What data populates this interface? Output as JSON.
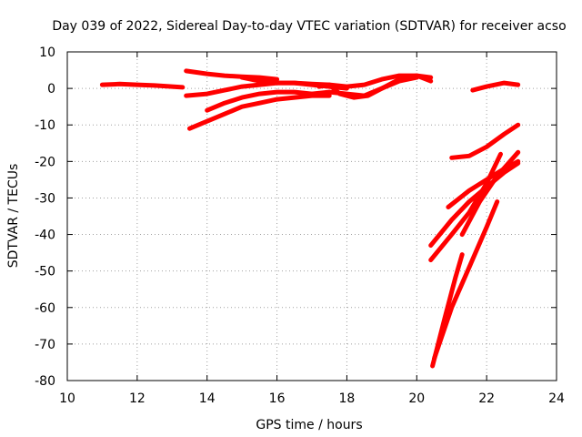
{
  "chart_data": {
    "type": "line",
    "title": "Day 039 of 2022, Sidereal Day-to-day VTEC variation (SDTVAR) for receiver acso",
    "xlabel": "GPS time / hours",
    "ylabel": "SDTVAR / TECUs",
    "xlim": [
      10,
      24
    ],
    "ylim": [
      -80,
      10
    ],
    "xticks": [
      10,
      12,
      14,
      16,
      18,
      20,
      22,
      24
    ],
    "yticks": [
      -80,
      -70,
      -60,
      -50,
      -40,
      -30,
      -20,
      -10,
      0,
      10
    ],
    "grid": true,
    "colors": {
      "series": "#ff0000"
    },
    "series": [
      {
        "x": [
          11.0,
          11.5,
          12.0,
          12.5,
          13.0,
          13.3
        ],
        "y": [
          1.0,
          1.2,
          1.0,
          0.8,
          0.5,
          0.3
        ]
      },
      {
        "x": [
          13.4,
          14.0,
          14.5,
          15.0,
          15.5,
          16.0
        ],
        "y": [
          4.8,
          4.0,
          3.5,
          3.2,
          3.0,
          2.5
        ]
      },
      {
        "x": [
          13.4,
          14.0,
          14.5,
          15.0,
          15.5,
          16.0,
          16.5,
          17.0,
          17.5,
          18.0
        ],
        "y": [
          -2.0,
          -1.5,
          -0.5,
          0.5,
          1.0,
          1.5,
          1.5,
          1.0,
          0.5,
          0.0
        ]
      },
      {
        "x": [
          15.0,
          15.5,
          16.0,
          16.5,
          17.0,
          17.5,
          18.0,
          18.5,
          19.0,
          19.5,
          20.0,
          20.4
        ],
        "y": [
          3.0,
          2.0,
          1.5,
          1.5,
          1.2,
          1.0,
          0.5,
          1.0,
          2.5,
          3.5,
          3.5,
          2.0
        ]
      },
      {
        "x": [
          13.5,
          14.0,
          14.5,
          15.0,
          15.5,
          16.0,
          16.5,
          17.0,
          17.5
        ],
        "y": [
          -11.0,
          -9.0,
          -7.0,
          -5.0,
          -4.0,
          -3.0,
          -2.5,
          -2.0,
          -2.0
        ]
      },
      {
        "x": [
          14.0,
          14.5,
          15.0,
          15.5,
          16.0,
          16.5,
          17.0
        ],
        "y": [
          -6.0,
          -4.0,
          -2.5,
          -1.5,
          -1.0,
          -1.0,
          -1.5
        ]
      },
      {
        "x": [
          17.0,
          17.5,
          18.0,
          18.5,
          19.0,
          19.5,
          20.0,
          20.4
        ],
        "y": [
          -1.5,
          -1.0,
          -1.5,
          -2.0,
          0.0,
          2.5,
          3.5,
          3.0
        ]
      },
      {
        "x": [
          17.2,
          17.5,
          17.8,
          18.2,
          18.6,
          19.0,
          19.5,
          20.0
        ],
        "y": [
          0.5,
          1.0,
          -1.5,
          -2.5,
          -2.0,
          0.0,
          2.0,
          3.0
        ]
      },
      {
        "x": [
          21.6,
          22.0,
          22.5,
          22.9
        ],
        "y": [
          -0.5,
          0.5,
          1.5,
          1.0
        ]
      },
      {
        "x": [
          21.0,
          21.5,
          22.0,
          22.5,
          22.9
        ],
        "y": [
          -19.0,
          -18.5,
          -16.0,
          -12.5,
          -10.0
        ]
      },
      {
        "x": [
          20.4,
          21.0,
          21.5,
          22.0,
          22.5,
          22.9
        ],
        "y": [
          -43.0,
          -36.0,
          -31.0,
          -27.0,
          -23.0,
          -20.5
        ]
      },
      {
        "x": [
          20.9,
          21.5,
          22.0,
          22.5,
          22.9
        ],
        "y": [
          -32.5,
          -28.0,
          -25.0,
          -22.0,
          -20.0
        ]
      },
      {
        "x": [
          20.4,
          21.0,
          21.5,
          22.0,
          22.4
        ],
        "y": [
          -47.0,
          -40.0,
          -34.0,
          -26.0,
          -18.0
        ]
      },
      {
        "x": [
          21.3,
          21.8,
          22.3,
          22.9
        ],
        "y": [
          -40.0,
          -31.0,
          -24.0,
          -17.5
        ]
      },
      {
        "x": [
          20.45,
          20.8,
          21.1,
          21.3
        ],
        "y": [
          -76.0,
          -63.0,
          -52.0,
          -45.5
        ]
      },
      {
        "x": [
          20.5,
          21.0,
          21.5,
          22.0,
          22.3
        ],
        "y": [
          -74.0,
          -60.0,
          -49.0,
          -38.0,
          -31.0
        ]
      }
    ]
  }
}
